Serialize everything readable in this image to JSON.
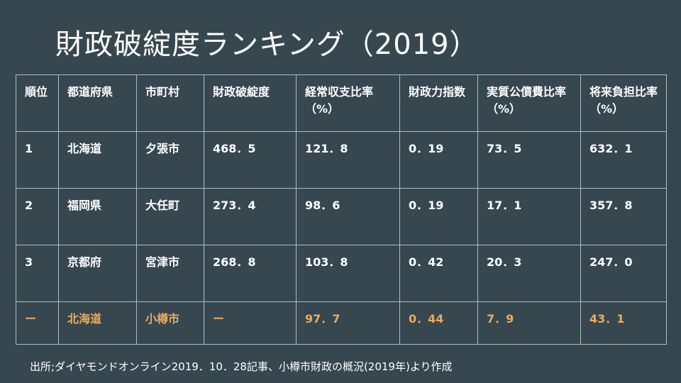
{
  "title": "財政破綻度ランキング（2019）",
  "headers": [
    "順位",
    "都道府県",
    "市町村",
    "財政破綻度",
    "経常収支比率（%）",
    "財政力指数",
    "実質公債費比率（%）",
    "将来負担比率（%）"
  ],
  "rows": [
    [
      "1",
      "北海道",
      "夕張市",
      "468．5",
      "121．8",
      "0．19",
      "73．5",
      "632．1"
    ],
    [
      "2",
      "福岡県",
      "大任町",
      "273．4",
      "98．6",
      "0．19",
      "17．1",
      "357．8"
    ],
    [
      "3",
      "京都府",
      "宮津市",
      "268．8",
      "103．8",
      "0．42",
      "20．3",
      "247．0"
    ],
    [
      "ー",
      "北海道",
      "小樽市",
      "ー",
      "97．7",
      "0．44",
      "7．9",
      "43．1"
    ]
  ],
  "highlight_color": "#f0a95a",
  "source": "出所;ダイヤモンドオンライン2019．10．28記事、小樽市財政の概況(2019年)より作成"
}
